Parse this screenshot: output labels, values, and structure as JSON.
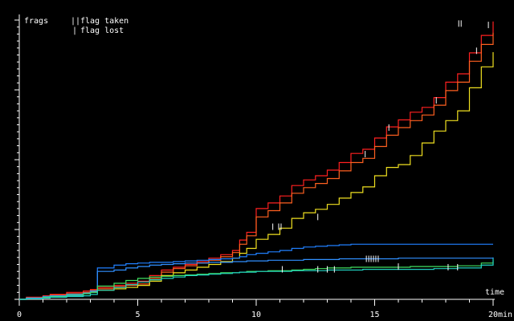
{
  "chart_data": {
    "type": "line",
    "ylabel": "frags",
    "xlabel": "time",
    "x_unit": "min",
    "xlim": [
      0,
      20
    ],
    "ylim": [
      0,
      40
    ],
    "grid": false,
    "legend_position": "top-left",
    "xticks": [
      "0",
      "5",
      "10",
      "15",
      "20"
    ],
    "legend": [
      {
        "marker": "||",
        "label": "flag taken"
      },
      {
        "marker": "|",
        "label": "flag lost"
      }
    ],
    "series": [
      {
        "color": "#ff2020",
        "x": [
          0,
          0.3,
          1,
          1.3,
          2,
          2.7,
          3,
          3.3,
          4,
          4.5,
          5,
          5.5,
          6,
          6.5,
          7,
          7.5,
          8,
          8.5,
          9,
          9.3,
          9.6,
          10,
          10.5,
          11,
          11.5,
          12,
          12.5,
          13,
          13.5,
          14,
          14.5,
          15,
          15.5,
          16,
          16.5,
          17,
          17.5,
          18,
          18.5,
          19,
          19.5,
          20
        ],
        "y": [
          0,
          0.3,
          0.5,
          0.7,
          1,
          1.2,
          1.4,
          1.7,
          2,
          2.3,
          2.6,
          3.4,
          4.2,
          4.6,
          5,
          5.4,
          5.9,
          6.4,
          7,
          8.5,
          9.6,
          13,
          13.8,
          14.8,
          16.3,
          17.1,
          17.7,
          18.5,
          19.6,
          20.9,
          21.5,
          23.1,
          24.7,
          25.7,
          26.8,
          27.5,
          28.9,
          31.1,
          32.3,
          35.3,
          37.8,
          39.8
        ]
      },
      {
        "color": "#ff6020",
        "x": [
          0,
          0.3,
          1,
          1.3,
          2,
          2.7,
          3,
          3.3,
          4,
          4.5,
          5,
          5.5,
          6,
          6.5,
          7,
          7.5,
          8,
          8.5,
          9,
          9.3,
          9.6,
          10,
          10.5,
          11,
          11.5,
          12,
          12.5,
          13,
          13.5,
          14,
          14.5,
          15,
          15.5,
          16,
          16.5,
          17,
          17.5,
          18,
          18.5,
          19,
          19.5,
          20
        ],
        "y": [
          0,
          0.2,
          0.4,
          0.6,
          0.8,
          1,
          1.3,
          1.5,
          1.8,
          2,
          2.2,
          3,
          3.9,
          4.4,
          4.8,
          5.2,
          5.6,
          6.1,
          6.7,
          7.9,
          9.1,
          11.8,
          12.7,
          13.8,
          15.2,
          16,
          16.6,
          17.3,
          18.4,
          19.6,
          20.2,
          21.9,
          23.5,
          24.6,
          25.6,
          26.4,
          27.8,
          29.9,
          31.1,
          34.1,
          36.5,
          38.2
        ]
      },
      {
        "color": "#f0e020",
        "x": [
          0,
          0.3,
          1,
          1.3,
          2,
          2.7,
          3,
          3.3,
          4,
          4.5,
          5,
          5.5,
          6,
          6.5,
          7,
          7.5,
          8,
          8.5,
          9,
          9.3,
          9.6,
          10,
          10.5,
          11,
          11.5,
          12,
          12.5,
          13,
          13.5,
          14,
          14.5,
          15,
          15.5,
          16,
          16.5,
          17,
          17.5,
          18,
          18.5,
          19,
          19.5,
          20
        ],
        "y": [
          0,
          0.2,
          0.3,
          0.5,
          0.7,
          0.9,
          1.1,
          1.3,
          1.5,
          1.7,
          2,
          2.6,
          3.4,
          3.8,
          4.2,
          4.6,
          5,
          5.4,
          5.9,
          6.6,
          7.3,
          8.6,
          9.3,
          10.2,
          11.6,
          12.4,
          12.9,
          13.6,
          14.5,
          15.3,
          16.1,
          17.7,
          18.9,
          19.3,
          20.6,
          22.4,
          24.1,
          25.6,
          27,
          30.3,
          33.3,
          35.4
        ]
      },
      {
        "color": "#2080ff",
        "x": [
          0,
          0.3,
          1,
          1.3,
          2,
          2.7,
          3,
          3.3,
          4,
          4.5,
          5,
          5.5,
          6,
          6.5,
          7,
          7.5,
          8,
          8.5,
          9,
          9.3,
          9.6,
          10,
          10.5,
          11,
          11.5,
          12,
          12.5,
          13,
          13.5,
          14,
          14.5,
          15,
          15.5,
          16,
          16.5,
          17,
          17.5,
          18,
          18.5,
          19,
          19.5,
          20
        ],
        "y": [
          0,
          0.2,
          0.4,
          0.5,
          0.7,
          0.9,
          1.2,
          4.5,
          4.9,
          5.1,
          5.2,
          5.3,
          5.3,
          5.4,
          5.5,
          5.6,
          5.7,
          5.8,
          5.9,
          6.1,
          6.4,
          6.6,
          6.8,
          7,
          7.3,
          7.5,
          7.6,
          7.7,
          7.8,
          7.9,
          7.9,
          7.9,
          7.9,
          7.9,
          7.9,
          7.9,
          7.9,
          7.9,
          7.9,
          7.9,
          7.9,
          7.9
        ]
      },
      {
        "color": "#3090ff",
        "x": [
          0,
          0.3,
          1,
          1.3,
          2,
          2.7,
          3,
          3.3,
          4,
          4.5,
          5,
          5.5,
          6,
          6.5,
          7,
          7.5,
          8,
          8.5,
          9,
          9.3,
          9.6,
          10,
          10.5,
          11,
          11.5,
          12,
          12.5,
          13,
          13.5,
          14,
          14.5,
          15,
          15.5,
          16,
          16.5,
          17,
          17.5,
          18,
          18.5,
          19,
          19.5,
          20
        ],
        "y": [
          0,
          0.1,
          0.2,
          0.4,
          0.5,
          0.8,
          1,
          4,
          4.2,
          4.5,
          4.7,
          4.9,
          5,
          5.1,
          5.2,
          5.2,
          5.3,
          5.3,
          5.4,
          5.4,
          5.5,
          5.5,
          5.6,
          5.6,
          5.6,
          5.7,
          5.7,
          5.7,
          5.8,
          5.8,
          5.8,
          5.8,
          5.8,
          5.9,
          5.9,
          5.9,
          5.9,
          5.9,
          5.9,
          5.9,
          5.9,
          6
        ]
      },
      {
        "color": "#40e060",
        "x": [
          0,
          0.3,
          1,
          1.3,
          2,
          2.7,
          3,
          3.3,
          4,
          4.5,
          5,
          5.5,
          6,
          6.5,
          7,
          7.5,
          8,
          8.5,
          9,
          9.3,
          9.6,
          10,
          10.5,
          11,
          11.5,
          12,
          12.5,
          13,
          13.5,
          14,
          14.5,
          15,
          15.5,
          16,
          16.5,
          17,
          17.5,
          18,
          18.5,
          19,
          19.5,
          20
        ],
        "y": [
          0,
          0.1,
          0.3,
          0.4,
          0.6,
          0.8,
          1,
          1.9,
          2.3,
          2.7,
          3,
          3.2,
          3.3,
          3.4,
          3.5,
          3.6,
          3.7,
          3.8,
          3.8,
          3.9,
          4,
          4,
          4.1,
          4.1,
          4.2,
          4.3,
          4.4,
          4.5,
          4.5,
          4.6,
          4.6,
          4.6,
          4.6,
          4.6,
          4.7,
          4.7,
          4.7,
          4.7,
          4.8,
          4.8,
          5.2,
          5.6
        ]
      },
      {
        "color": "#20d0c0",
        "x": [
          0,
          0.3,
          1,
          1.3,
          2,
          2.7,
          3,
          3.3,
          4,
          4.5,
          5,
          5.5,
          6,
          6.5,
          7,
          7.5,
          8,
          8.5,
          9,
          9.3,
          9.6,
          10,
          10.5,
          11,
          11.5,
          12,
          12.5,
          13,
          13.5,
          14,
          14.5,
          15,
          15.5,
          16,
          16.5,
          17,
          17.5,
          18,
          18.5,
          19,
          19.5,
          20
        ],
        "y": [
          0,
          0.1,
          0.2,
          0.3,
          0.4,
          0.5,
          0.7,
          1.3,
          1.7,
          2.1,
          2.5,
          2.8,
          3,
          3.2,
          3.4,
          3.5,
          3.6,
          3.7,
          3.8,
          3.9,
          3.9,
          4,
          4,
          4,
          4.1,
          4.1,
          4.1,
          4.2,
          4.2,
          4.2,
          4.3,
          4.3,
          4.3,
          4.3,
          4.3,
          4.3,
          4.4,
          4.4,
          4.5,
          4.5,
          4.9,
          5.9
        ]
      }
    ],
    "flag_events": [
      {
        "kind": "taken",
        "x": 11,
        "y": 10.4
      },
      {
        "kind": "taken",
        "x": 14.7,
        "y": 5.8
      },
      {
        "kind": "taken",
        "x": 14.9,
        "y": 5.8
      },
      {
        "kind": "taken",
        "x": 15.1,
        "y": 5.8
      },
      {
        "kind": "taken",
        "x": 18.6,
        "y": 39.5
      },
      {
        "kind": "lost",
        "x": 10.7,
        "y": 10.4
      },
      {
        "kind": "lost",
        "x": 12.6,
        "y": 11.8
      },
      {
        "kind": "lost",
        "x": 11.1,
        "y": 4.3
      },
      {
        "kind": "lost",
        "x": 12.6,
        "y": 4.3
      },
      {
        "kind": "lost",
        "x": 13.0,
        "y": 4.3
      },
      {
        "kind": "lost",
        "x": 13.3,
        "y": 4.3
      },
      {
        "kind": "lost",
        "x": 16.0,
        "y": 4.7
      },
      {
        "kind": "lost",
        "x": 18.1,
        "y": 4.6
      },
      {
        "kind": "lost",
        "x": 18.5,
        "y": 4.6
      },
      {
        "kind": "lost",
        "x": 14.6,
        "y": 20.8
      },
      {
        "kind": "lost",
        "x": 15.6,
        "y": 24.6
      },
      {
        "kind": "lost",
        "x": 17.6,
        "y": 28.5
      },
      {
        "kind": "lost",
        "x": 19.3,
        "y": 35.6
      },
      {
        "kind": "lost",
        "x": 19.8,
        "y": 39.3
      }
    ]
  }
}
